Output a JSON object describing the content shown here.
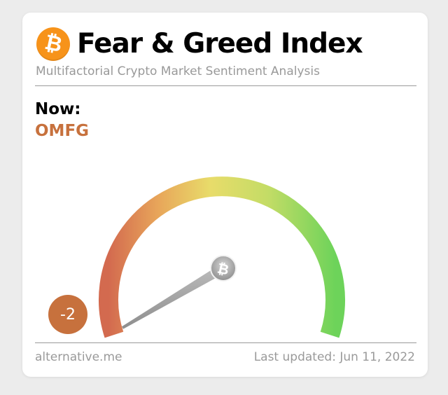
{
  "header": {
    "logo_icon": "bitcoin-icon",
    "logo_glyph": "₿",
    "title": "Fear & Greed Index",
    "subtitle": "Multifactorial Crypto Market Sentiment Analysis"
  },
  "now": {
    "label": "Now:",
    "classification": "OMFG",
    "value": "-2"
  },
  "gauge": {
    "min": 0,
    "max": 100,
    "hub_glyph": "₿",
    "colors": {
      "extreme_fear": "#d36a4f",
      "fear": "#e8a65a",
      "neutral": "#e8dc6a",
      "greed": "#a9d86a",
      "extreme_greed": "#6dd35a"
    }
  },
  "footer": {
    "source": "alternative.me",
    "updated": "Last updated: Jun 11, 2022"
  },
  "colors": {
    "accent": "#c7713d",
    "bitcoin_orange": "#f7931a",
    "muted_text": "#999999"
  }
}
